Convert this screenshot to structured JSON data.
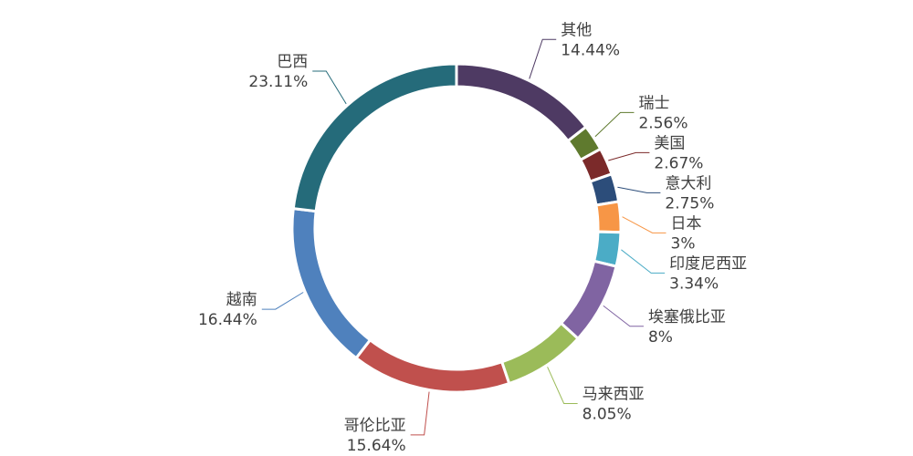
{
  "chart_data": {
    "type": "donut",
    "categories": [
      "其他",
      "瑞士",
      "美国",
      "意大利",
      "日本",
      "印度尼西亚",
      "埃塞俄比亚",
      "马来西亚",
      "哥伦比亚",
      "越南",
      "巴西"
    ],
    "values": [
      14.44,
      2.56,
      2.67,
      2.75,
      3,
      3.34,
      8,
      8.05,
      15.64,
      16.44,
      23.11
    ],
    "value_labels": [
      "14.44%",
      "2.56%",
      "2.67%",
      "2.75%",
      "3%",
      "3.34%",
      "8%",
      "8.05%",
      "15.64%",
      "16.44%",
      "23.11%"
    ],
    "colors": [
      "#4e3a63",
      "#5f7a2e",
      "#7b2a2a",
      "#2c4d7a",
      "#f79646",
      "#4bacc6",
      "#8064a2",
      "#9bbb59",
      "#c0504d",
      "#4f81bd",
      "#256b7a"
    ]
  }
}
